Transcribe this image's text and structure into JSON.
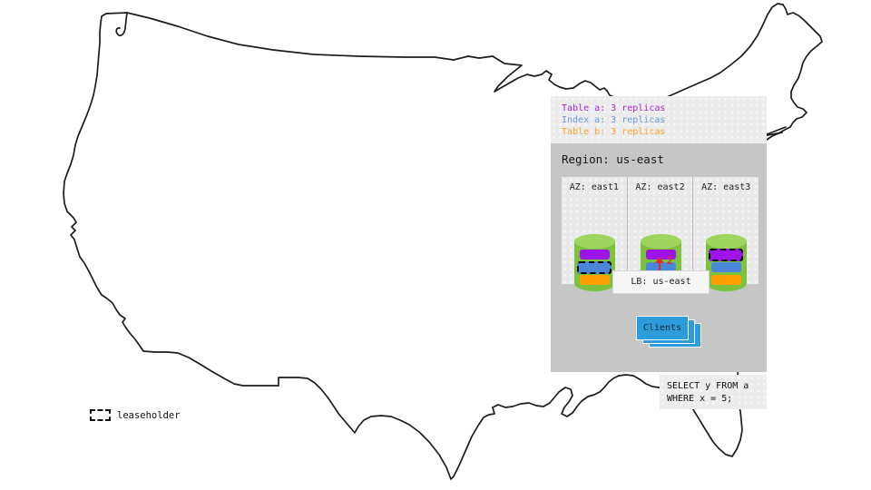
{
  "replica_legend": [
    {
      "name": "table-a",
      "label": "Table a: 3 replicas",
      "color": "#a42ad8"
    },
    {
      "name": "index-a",
      "label": "Index a: 3 replicas",
      "color": "#6d95e0"
    },
    {
      "name": "table-b",
      "label": "Table b: 3 replicas",
      "color": "#f9a232"
    }
  ],
  "region": {
    "title": "Region: us-east",
    "azs": [
      {
        "label": "AZ: east1",
        "replicas": [
          {
            "name": "table-a",
            "color": "#9d13e8",
            "leaseholder": false
          },
          {
            "name": "index-a",
            "color": "#4a87d8",
            "leaseholder": true
          },
          {
            "name": "table-b",
            "color": "#ff9e00",
            "leaseholder": false
          }
        ]
      },
      {
        "label": "AZ: east2",
        "replicas": [
          {
            "name": "table-a",
            "color": "#9d13e8",
            "leaseholder": false
          },
          {
            "name": "index-a",
            "color": "#4a87d8",
            "leaseholder": false
          },
          {
            "name": "table-b",
            "color": "#ff9e00",
            "leaseholder": true
          }
        ]
      },
      {
        "label": "AZ: east3",
        "replicas": [
          {
            "name": "table-a",
            "color": "#9d13e8",
            "leaseholder": true
          },
          {
            "name": "index-a",
            "color": "#4a87d8",
            "leaseholder": false
          },
          {
            "name": "table-b",
            "color": "#ff9e00",
            "leaseholder": false
          }
        ]
      }
    ]
  },
  "cylinder": {
    "body_color": "#7cc23e",
    "top_color": "#9fd45f"
  },
  "lb": {
    "label": "LB: us-east"
  },
  "clients": {
    "label": "Clients",
    "color": "#2d9cdb",
    "stack_count": 3
  },
  "arrow": {
    "label": "2",
    "color": "#e32b2b"
  },
  "sql": {
    "lines": [
      "SELECT y FROM a",
      "WHERE x = 5;"
    ]
  },
  "map_legend": {
    "label": "leaseholder"
  }
}
